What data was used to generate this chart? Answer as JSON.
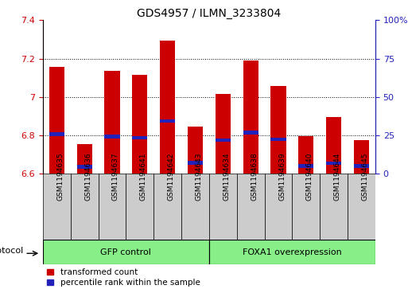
{
  "title": "GDS4957 / ILMN_3233804",
  "samples": [
    "GSM1194635",
    "GSM1194636",
    "GSM1194637",
    "GSM1194641",
    "GSM1194642",
    "GSM1194643",
    "GSM1194634",
    "GSM1194638",
    "GSM1194639",
    "GSM1194640",
    "GSM1194644",
    "GSM1194645"
  ],
  "transformed_counts": [
    7.155,
    6.755,
    7.135,
    7.115,
    7.295,
    6.845,
    7.015,
    7.19,
    7.055,
    6.795,
    6.895,
    6.775
  ],
  "percentile_ranks": [
    6.805,
    6.635,
    6.793,
    6.785,
    6.875,
    6.655,
    6.773,
    6.813,
    6.778,
    6.638,
    6.652,
    6.638
  ],
  "percentile_bar_height": 0.018,
  "ylim_left": [
    6.6,
    7.4
  ],
  "yticks_left": [
    6.6,
    6.8,
    7.0,
    7.2,
    7.4
  ],
  "ytick_labels_left": [
    "6.6",
    "6.8",
    "7",
    "7.2",
    "7.4"
  ],
  "yticks_right_pct": [
    0,
    25,
    50,
    75,
    100
  ],
  "ytick_labels_right": [
    "0",
    "25",
    "50",
    "75",
    "100%"
  ],
  "bar_color": "#cc0000",
  "percentile_color": "#2222bb",
  "group1_label": "GFP control",
  "group2_label": "FOXA1 overexpression",
  "group1_count": 6,
  "group2_count": 6,
  "group_bg_color": "#88ee88",
  "sample_box_color": "#cccccc",
  "protocol_label": "protocol",
  "legend_items": [
    "transformed count",
    "percentile rank within the sample"
  ],
  "bar_color_legend": "#cc0000",
  "percentile_color_legend": "#2222bb",
  "bar_width": 0.55,
  "title_fontsize": 10,
  "tick_fontsize": 8,
  "sample_fontsize": 6.5,
  "group_fontsize": 8,
  "legend_fontsize": 7.5
}
